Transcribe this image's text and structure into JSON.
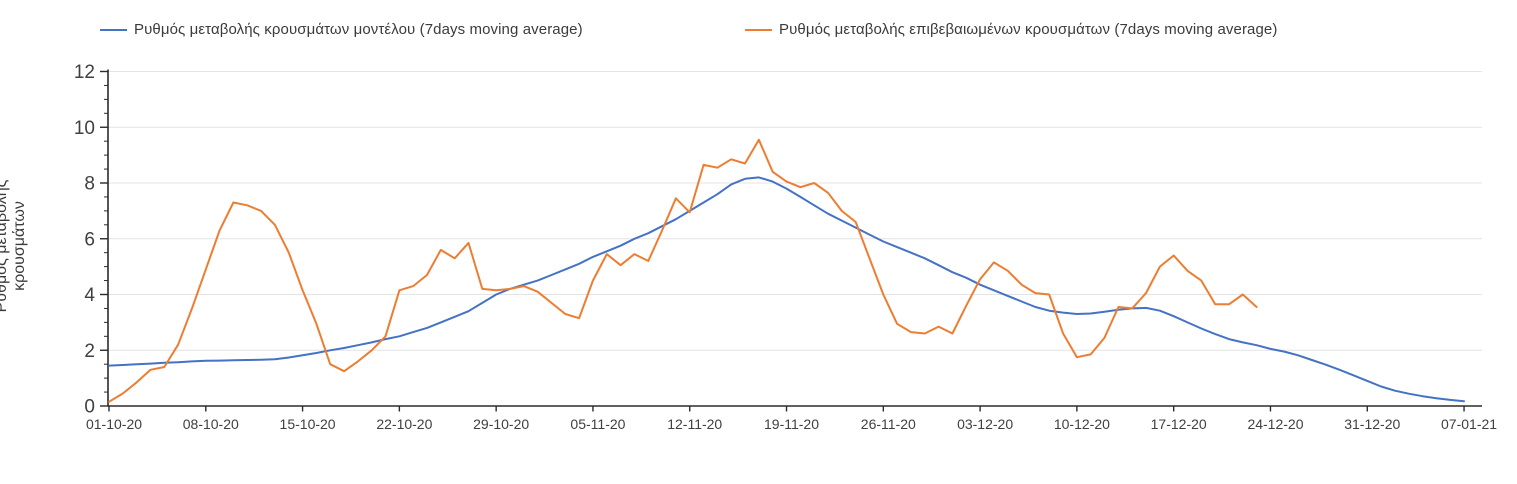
{
  "chart_data": {
    "type": "line",
    "title": "",
    "xlabel": "",
    "ylabel": "Ρυθμός μεταβολής κρουσμάτων",
    "ylim": [
      0,
      12
    ],
    "y_ticks": [
      0,
      2,
      4,
      6,
      8,
      10,
      12
    ],
    "y_minor_tick_step": 0.5,
    "grid": "horizontal-major",
    "legend_position": "top",
    "x_unit": "daily points; axis ticks every 7 days",
    "x_tick_labels": [
      "01-10-20",
      "08-10-20",
      "15-10-20",
      "22-10-20",
      "29-10-20",
      "05-11-20",
      "12-11-20",
      "19-11-20",
      "26-11-20",
      "03-12-20",
      "10-12-20",
      "17-12-20",
      "24-12-20",
      "31-12-20",
      "07-01-21"
    ],
    "series": [
      {
        "name": "Ρυθμός μεταβολής κρουσμάτων μοντέλου (7days moving average)",
        "color": "#4472c4",
        "start_tick": "01-10-20",
        "values": [
          1.45,
          1.47,
          1.5,
          1.52,
          1.55,
          1.57,
          1.6,
          1.62,
          1.63,
          1.64,
          1.65,
          1.66,
          1.68,
          1.74,
          1.82,
          1.9,
          2.0,
          2.08,
          2.18,
          2.28,
          2.4,
          2.5,
          2.65,
          2.8,
          3.0,
          3.2,
          3.4,
          3.7,
          4.0,
          4.2,
          4.35,
          4.5,
          4.7,
          4.9,
          5.1,
          5.35,
          5.55,
          5.75,
          6.0,
          6.2,
          6.45,
          6.7,
          7.0,
          7.3,
          7.6,
          7.95,
          8.15,
          8.2,
          8.05,
          7.8,
          7.5,
          7.2,
          6.9,
          6.65,
          6.4,
          6.15,
          5.9,
          5.7,
          5.5,
          5.3,
          5.05,
          4.8,
          4.6,
          4.35,
          4.15,
          3.95,
          3.75,
          3.55,
          3.42,
          3.35,
          3.3,
          3.32,
          3.38,
          3.45,
          3.5,
          3.52,
          3.42,
          3.22,
          3.0,
          2.78,
          2.58,
          2.4,
          2.28,
          2.18,
          2.05,
          1.95,
          1.82,
          1.65,
          1.48,
          1.3,
          1.1,
          0.9,
          0.7,
          0.55,
          0.44,
          0.35,
          0.28,
          0.22,
          0.17
        ]
      },
      {
        "name": "Ρυθμός μεταβολής επιβεβαιωμένων κρουσμάτων (7days moving average)",
        "color": "#ed7d31",
        "start_tick": "01-10-20",
        "values": [
          0.15,
          0.45,
          0.85,
          1.3,
          1.4,
          2.2,
          3.5,
          4.9,
          6.3,
          7.3,
          7.2,
          7.0,
          6.5,
          5.5,
          4.15,
          2.95,
          1.5,
          1.25,
          1.6,
          2.0,
          2.5,
          4.15,
          4.3,
          4.7,
          5.6,
          5.3,
          5.85,
          4.2,
          4.15,
          4.2,
          4.3,
          4.1,
          3.7,
          3.3,
          3.15,
          4.5,
          5.45,
          5.05,
          5.45,
          5.2,
          6.3,
          7.45,
          6.95,
          8.65,
          8.55,
          8.85,
          8.7,
          9.55,
          8.4,
          8.05,
          7.85,
          8.0,
          7.65,
          7.0,
          6.6,
          5.3,
          4.0,
          2.95,
          2.65,
          2.6,
          2.85,
          2.6,
          3.6,
          4.55,
          5.15,
          4.85,
          4.35,
          4.05,
          4.0,
          2.6,
          1.75,
          1.85,
          2.45,
          3.55,
          3.5,
          4.05,
          5.0,
          5.4,
          4.85,
          4.5,
          3.65,
          3.65,
          4.0,
          3.55
        ]
      }
    ]
  }
}
